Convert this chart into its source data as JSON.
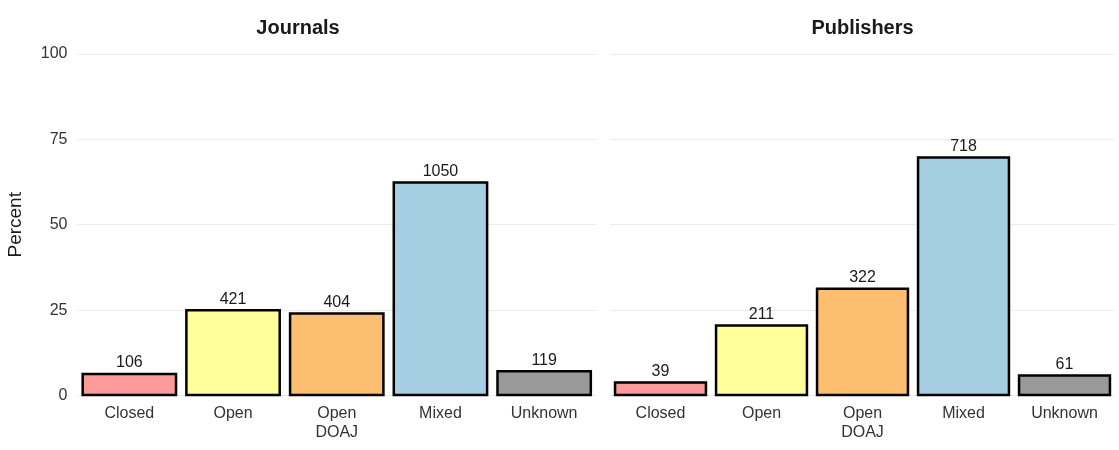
{
  "chart_data": [
    {
      "type": "bar",
      "title": "Journals",
      "ylabel": "Percent",
      "categories": [
        "Closed",
        "Open",
        "Open\nDOAJ",
        "Mixed",
        "Unknown"
      ],
      "values": [
        6.3,
        25,
        24,
        62.4,
        7.1
      ],
      "colors": [
        "#fb9a99",
        "#ffff99",
        "#fdbf6f",
        "#a6cee3",
        "#999999"
      ],
      "ylim": [
        0,
        100
      ],
      "yticks": [
        0,
        25,
        50,
        75,
        100
      ],
      "grid": "y",
      "annotations": [
        {
          "text": "106",
          "x": "Closed",
          "y": 6.3
        },
        {
          "text": "421",
          "x": "Open",
          "y": 25
        },
        {
          "text": "404",
          "x": "Open\nDOAJ",
          "y": 24
        },
        {
          "text": "1050",
          "x": "Mixed",
          "y": 62.4
        },
        {
          "text": "119",
          "x": "Unknown",
          "y": 7.1
        }
      ]
    },
    {
      "type": "bar",
      "title": "Publishers",
      "categories": [
        "Closed",
        "Open",
        "Open\nDOAJ",
        "Mixed",
        "Unknown"
      ],
      "values": [
        3.8,
        20.5,
        31.3,
        69.7,
        5.9
      ],
      "colors": [
        "#fb9a99",
        "#ffff99",
        "#fdbf6f",
        "#a6cee3",
        "#999999"
      ],
      "ylim": [
        0,
        100
      ],
      "yticks": [
        0,
        25,
        50,
        75,
        100
      ],
      "grid": "y",
      "tick_labels": "x",
      "annotations": [
        {
          "text": "39",
          "x": "Closed",
          "y": 3.8
        },
        {
          "text": "211",
          "x": "Open",
          "y": 20.5
        },
        {
          "text": "322",
          "x": "Open\nDOAJ",
          "y": 31.3
        },
        {
          "text": "718",
          "x": "Mixed",
          "y": 69.7
        },
        {
          "text": "61",
          "x": "Unknown",
          "y": 5.9
        }
      ]
    }
  ]
}
